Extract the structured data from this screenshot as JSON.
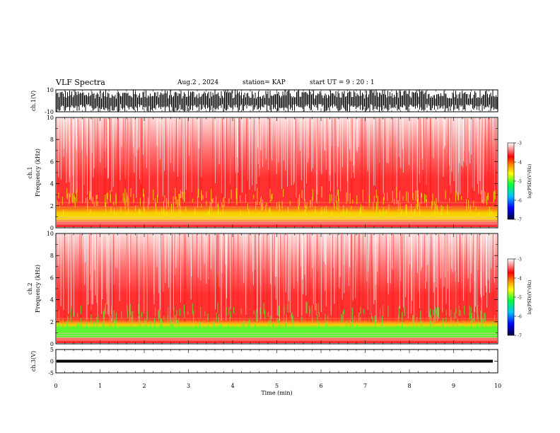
{
  "header": {
    "title": "VLF Spectra",
    "date": "Aug.2  , 2024",
    "station": "station= KAP",
    "start": "start  UT  =   9  : 20 : 1"
  },
  "chart_data": [
    {
      "type": "line",
      "title": "",
      "ylabel": "ch.1(V)",
      "ylim": [
        -10,
        10
      ],
      "yticks": [
        "10",
        "-10"
      ],
      "note": "dense waveform trace over full time span"
    },
    {
      "type": "heatmap",
      "ylabel": "ch.1\nFrequency  (kHz)",
      "ylim": [
        0,
        10
      ],
      "yticks": [
        "0",
        "2",
        "4",
        "6",
        "8",
        "10"
      ],
      "colorbar": {
        "label": "log(PSD)(V²/Hz)",
        "ticks": [
          "-3",
          "-4",
          "-5",
          "-6",
          "-7"
        ],
        "range": [
          -7,
          -3
        ]
      }
    },
    {
      "type": "heatmap",
      "ylabel": "ch.2\nFrequency  (kHz)",
      "ylim": [
        0,
        10
      ],
      "yticks": [
        "0",
        "2",
        "4",
        "6",
        "8",
        "10"
      ],
      "colorbar": {
        "label": "log(PSD)(V²/Hz)",
        "ticks": [
          "-3",
          "-4",
          "-5",
          "-6",
          "-7"
        ],
        "range": [
          -7,
          -3
        ]
      }
    },
    {
      "type": "line",
      "ylabel": "ch.3(V)",
      "ylim": [
        -5,
        5
      ],
      "yticks": [
        "5",
        "0",
        "-5"
      ],
      "note": "near-constant band around 0 V"
    }
  ],
  "xaxis": {
    "label": "Time  (min)",
    "ticks": [
      "0",
      "1",
      "2",
      "3",
      "4",
      "5",
      "6",
      "7",
      "8",
      "9",
      "10"
    ],
    "xlim": [
      0,
      10
    ]
  },
  "colors": {
    "background": "#ffffff",
    "spectrogram_high": "#ff2020",
    "spectrogram_mid": "#ffe000",
    "spectrogram_low": "#30ff30",
    "trace": "#000000"
  }
}
